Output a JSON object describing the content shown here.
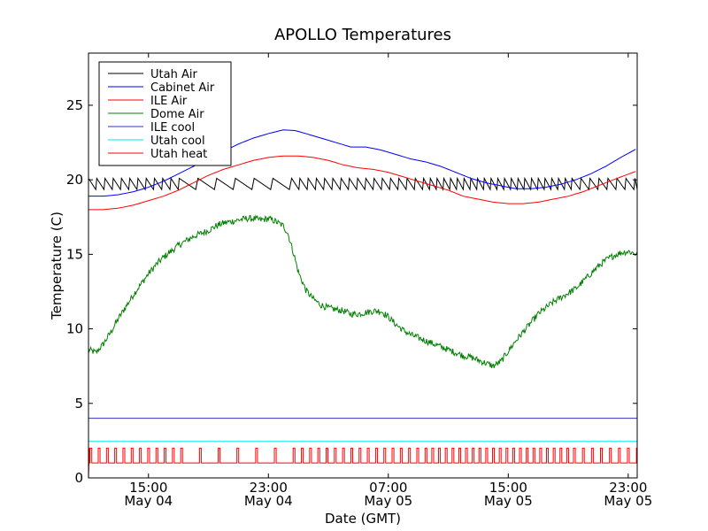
{
  "chart_data": {
    "type": "line",
    "title": "APOLLO Temperatures",
    "xlabel": "Date (GMT)",
    "ylabel": "Temperature (C)",
    "xlim": [
      11.0,
      47.6
    ],
    "ylim": [
      0,
      28.5
    ],
    "xunit": "hours since May 04 00:00 GMT",
    "x_ticks": [
      {
        "value": 15,
        "time": "15:00",
        "date": "May 04"
      },
      {
        "value": 23,
        "time": "23:00",
        "date": "May 04"
      },
      {
        "value": 31,
        "time": "07:00",
        "date": "May 05"
      },
      {
        "value": 39,
        "time": "15:00",
        "date": "May 05"
      },
      {
        "value": 47,
        "time": "23:00",
        "date": "May 05"
      }
    ],
    "y_ticks": [
      0,
      5,
      10,
      15,
      20,
      25
    ],
    "legend_position": "upper-left",
    "series": [
      {
        "name": "Utah Air",
        "color": "#000000",
        "style": "sawtooth",
        "base": 19.35,
        "amplitude": 0.75,
        "period_segments": [
          {
            "start": 11.0,
            "end": 17.0,
            "period": 0.55
          },
          {
            "start": 17.0,
            "end": 23.5,
            "period": 1.25
          },
          {
            "start": 23.5,
            "end": 33.0,
            "period": 0.55
          },
          {
            "start": 33.0,
            "end": 43.0,
            "period": 0.45
          },
          {
            "start": 43.0,
            "end": 47.6,
            "period": 0.6
          }
        ]
      },
      {
        "name": "Cabinet Air",
        "color": "#0000ff",
        "style": "line",
        "x": [
          11.0,
          12.0,
          13.0,
          14.0,
          15.0,
          16.0,
          17.0,
          18.0,
          19.0,
          20.0,
          21.0,
          22.0,
          23.0,
          24.0,
          24.8,
          25.5,
          26.5,
          27.5,
          28.5,
          29.5,
          30.5,
          31.5,
          32.5,
          33.5,
          34.5,
          35.5,
          36.5,
          37.5,
          38.5,
          39.5,
          40.5,
          41.5,
          42.5,
          43.5,
          44.5,
          45.5,
          46.5,
          47.6
        ],
        "y": [
          18.9,
          18.9,
          19.0,
          19.2,
          19.5,
          19.9,
          20.4,
          20.9,
          21.4,
          21.9,
          22.4,
          22.8,
          23.1,
          23.35,
          23.3,
          23.1,
          22.8,
          22.5,
          22.2,
          22.2,
          22.0,
          21.7,
          21.4,
          21.2,
          20.9,
          20.5,
          20.1,
          19.8,
          19.6,
          19.4,
          19.4,
          19.5,
          19.7,
          20.0,
          20.4,
          20.9,
          21.5,
          22.1
        ]
      },
      {
        "name": "ILE Air",
        "color": "#ff0000",
        "style": "line",
        "x": [
          11.0,
          12.0,
          13.0,
          14.0,
          15.0,
          16.0,
          17.0,
          18.0,
          19.0,
          20.0,
          21.0,
          22.0,
          23.0,
          24.0,
          25.0,
          26.0,
          27.0,
          28.0,
          29.0,
          30.0,
          31.0,
          32.0,
          33.0,
          34.0,
          35.0,
          36.0,
          37.0,
          38.0,
          39.0,
          40.0,
          41.0,
          42.0,
          43.0,
          44.0,
          45.0,
          46.0,
          47.6
        ],
        "y": [
          18.0,
          18.0,
          18.1,
          18.3,
          18.6,
          18.9,
          19.3,
          19.8,
          20.3,
          20.7,
          21.0,
          21.3,
          21.5,
          21.6,
          21.6,
          21.5,
          21.3,
          21.0,
          20.8,
          20.7,
          20.5,
          20.2,
          19.9,
          19.6,
          19.3,
          18.9,
          18.7,
          18.5,
          18.4,
          18.4,
          18.5,
          18.7,
          18.9,
          19.2,
          19.6,
          20.0,
          20.6
        ]
      },
      {
        "name": "Dome Air",
        "color": "#008000",
        "style": "noisy-line",
        "noise": 0.22,
        "x": [
          11.0,
          11.5,
          12.0,
          12.5,
          13.0,
          13.5,
          14.0,
          14.5,
          15.0,
          15.5,
          16.0,
          16.5,
          17.0,
          17.5,
          18.0,
          18.5,
          19.0,
          19.5,
          20.0,
          20.5,
          21.0,
          21.5,
          22.0,
          22.5,
          23.0,
          23.5,
          24.0,
          24.3,
          24.7,
          25.0,
          25.5,
          26.0,
          26.5,
          27.0,
          27.5,
          28.0,
          28.5,
          29.0,
          29.5,
          30.0,
          30.5,
          31.0,
          31.5,
          32.0,
          32.5,
          33.0,
          33.5,
          34.0,
          34.5,
          35.0,
          35.5,
          36.0,
          36.5,
          37.0,
          37.5,
          38.0,
          38.5,
          39.0,
          39.5,
          40.0,
          40.5,
          41.0,
          41.5,
          42.0,
          42.5,
          43.0,
          43.5,
          44.0,
          44.5,
          45.0,
          45.5,
          46.0,
          46.5,
          47.0,
          47.6
        ],
        "y": [
          8.6,
          8.4,
          9.0,
          9.8,
          10.7,
          11.5,
          12.3,
          13.0,
          13.7,
          14.3,
          14.8,
          15.2,
          15.6,
          15.9,
          16.2,
          16.4,
          16.6,
          16.9,
          17.1,
          17.2,
          17.3,
          17.4,
          17.4,
          17.3,
          17.4,
          17.2,
          16.9,
          16.4,
          15.0,
          13.8,
          12.6,
          12.0,
          11.6,
          11.4,
          11.3,
          11.2,
          11.0,
          11.0,
          11.1,
          11.2,
          11.2,
          10.8,
          10.3,
          9.9,
          9.6,
          9.4,
          9.2,
          9.0,
          8.8,
          8.6,
          8.4,
          8.2,
          8.1,
          7.9,
          7.7,
          7.5,
          7.8,
          8.5,
          9.2,
          9.8,
          10.4,
          11.0,
          11.4,
          11.8,
          12.1,
          12.4,
          12.7,
          13.2,
          13.7,
          14.2,
          14.6,
          14.9,
          15.1,
          15.2,
          15.0
        ]
      },
      {
        "name": "ILE cool",
        "color": "#3333bb",
        "style": "constant",
        "value": 4.0
      },
      {
        "name": "Utah cool",
        "color": "#00e5e5",
        "style": "constant",
        "value": 2.45
      },
      {
        "name": "Utah heat",
        "color": "#ff0000",
        "style": "pulses",
        "low": 1.0,
        "high": 2.0,
        "pulse_width": 0.12,
        "period_segments": [
          {
            "start": 11.1,
            "end": 17.0,
            "period": 0.55
          },
          {
            "start": 17.0,
            "end": 23.5,
            "period": 1.25
          },
          {
            "start": 23.5,
            "end": 33.0,
            "period": 0.55
          },
          {
            "start": 33.0,
            "end": 43.0,
            "period": 0.45
          },
          {
            "start": 43.0,
            "end": 47.6,
            "period": 0.6
          }
        ]
      }
    ]
  }
}
